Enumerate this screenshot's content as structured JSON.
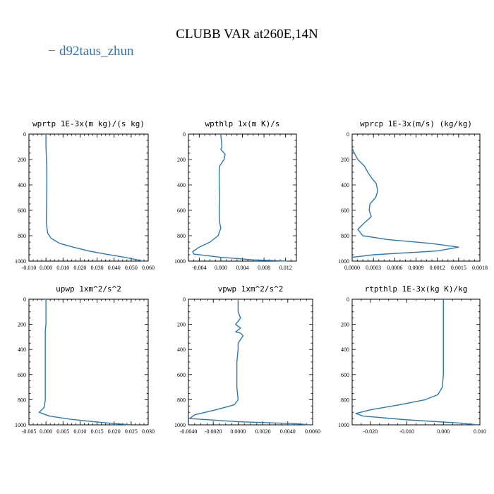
{
  "figure": {
    "title": "CLUBB VAR at260E,14N",
    "legend": {
      "marker": "−",
      "label": "d92taus_zhun",
      "color": "#2a7ab5"
    }
  },
  "chart_data": [
    {
      "type": "line",
      "title": "wprtp  1E-3x(m kg)/(s kg)",
      "series": [
        {
          "name": "d92taus_zhun",
          "color": "#2a7ab5",
          "x": [
            0.0,
            0.0,
            0.0003,
            0.0005,
            0.0005,
            0.0004,
            0.0003,
            0.0002,
            0.001,
            0.003,
            0.008,
            0.016,
            0.025,
            0.035,
            0.044,
            0.052,
            0.057
          ],
          "y": [
            0,
            100,
            200,
            300,
            400,
            500,
            600,
            700,
            780,
            820,
            860,
            890,
            920,
            945,
            965,
            985,
            1000
          ]
        }
      ],
      "xlim": [
        -0.01,
        0.06
      ],
      "ylim": [
        1000,
        0
      ],
      "xticks": [
        -0.01,
        0.0,
        0.01,
        0.02,
        0.03,
        0.04,
        0.05,
        0.06
      ],
      "xtick_labels": [
        "-0.010",
        "0.000",
        "0.010",
        "0.020",
        "0.030",
        "0.040",
        "0.050",
        "0.060"
      ],
      "yticks": [
        0,
        200,
        400,
        600,
        800,
        1000
      ],
      "ytick_labels": [
        "0",
        "200",
        "400",
        "600",
        "800",
        "1000"
      ]
    },
    {
      "type": "line",
      "title": "wpthlp  1x(m K)/s",
      "series": [
        {
          "name": "d92taus_zhun",
          "color": "#2a7ab5",
          "x": [
            0.0,
            0.0002,
            0.0,
            0.0008,
            0.0006,
            -0.0002,
            -0.0003,
            -0.0003,
            -0.0002,
            -0.0003,
            -0.0002,
            0.0,
            -0.0005,
            -0.002,
            -0.004,
            -0.0052,
            -0.005,
            0.0,
            0.006,
            0.0125
          ],
          "y": [
            0,
            100,
            120,
            160,
            200,
            250,
            300,
            400,
            500,
            600,
            700,
            740,
            800,
            850,
            890,
            925,
            945,
            970,
            990,
            1000
          ]
        }
      ],
      "xlim": [
        -0.006,
        0.014
      ],
      "ylim": [
        1000,
        0
      ],
      "xticks": [
        -0.004,
        0.0,
        0.004,
        0.008,
        0.012
      ],
      "xtick_labels": [
        "-0.004",
        "0.000",
        "0.004",
        "0.008",
        "0.012"
      ],
      "yticks": [
        0,
        200,
        400,
        600,
        800,
        1000
      ],
      "ytick_labels": [
        "0",
        "200",
        "400",
        "600",
        "800",
        "1000"
      ]
    },
    {
      "type": "line",
      "title": "wprcp  1E-3x(m/s) (kg/kg)",
      "series": [
        {
          "name": "d92taus_zhun",
          "color": "#2a7ab5",
          "x": [
            0.0,
            3e-05,
            8e-05,
            0.00017,
            0.00022,
            0.00028,
            0.00034,
            0.00036,
            0.00033,
            0.00025,
            0.00024,
            0.00027,
            0.00017,
            8e-05,
            0.00015,
            0.0005,
            0.0011,
            0.0015,
            0.0012,
            0.0003,
            0.0
          ],
          "y": [
            110,
            150,
            200,
            250,
            300,
            350,
            390,
            450,
            500,
            550,
            600,
            650,
            700,
            750,
            800,
            830,
            860,
            890,
            920,
            950,
            970
          ]
        }
      ],
      "xlim": [
        0.0,
        0.0018
      ],
      "ylim": [
        1000,
        0
      ],
      "xticks": [
        0.0,
        0.0003,
        0.0006,
        0.0009,
        0.0012,
        0.0015,
        0.0018
      ],
      "xtick_labels": [
        "0.0000",
        "0.0003",
        "0.0006",
        "0.0009",
        "0.0012",
        "0.0015",
        "0.0018"
      ],
      "yticks": [
        0,
        200,
        400,
        600,
        800,
        1000
      ],
      "ytick_labels": [
        "0",
        "200",
        "400",
        "600",
        "800",
        "1000"
      ]
    },
    {
      "type": "line",
      "title": "upwp  1xm^2/s^2",
      "series": [
        {
          "name": "d92taus_zhun",
          "color": "#2a7ab5",
          "x": [
            0.0,
            0.0,
            0.0,
            -0.0002,
            -0.0002,
            -0.0002,
            -0.0002,
            -0.0002,
            -0.0002,
            -0.0005,
            -0.002,
            0.001,
            0.007,
            0.014,
            0.02,
            0.025
          ],
          "y": [
            0,
            100,
            200,
            250,
            300,
            400,
            500,
            600,
            800,
            860,
            900,
            930,
            955,
            975,
            990,
            1000
          ]
        }
      ],
      "xlim": [
        -0.005,
        0.03
      ],
      "ylim": [
        1000,
        0
      ],
      "xticks": [
        -0.005,
        0.0,
        0.005,
        0.01,
        0.015,
        0.02,
        0.025,
        0.03
      ],
      "xtick_labels": [
        "-0.005",
        "0.000",
        "0.005",
        "0.010",
        "0.015",
        "0.020",
        "0.025",
        "0.030"
      ],
      "yticks": [
        0,
        200,
        400,
        600,
        800,
        1000
      ],
      "ytick_labels": [
        "0",
        "200",
        "400",
        "600",
        "800",
        "1000"
      ]
    },
    {
      "type": "line",
      "title": "vpwp  1xm^2/s^2",
      "series": [
        {
          "name": "d92taus_zhun",
          "color": "#2a7ab5",
          "x": [
            0.0,
            0.0,
            0.0002,
            -0.0002,
            0.0002,
            -0.0002,
            0.0002,
            0.0004,
            0.0,
            0.0,
            -0.0001,
            -0.0001,
            -0.0001,
            0.0,
            -0.0003,
            -0.0018,
            -0.0035,
            -0.0039,
            0.0,
            0.0045,
            0.0058
          ],
          "y": [
            0,
            100,
            150,
            200,
            230,
            260,
            270,
            290,
            350,
            400,
            500,
            600,
            700,
            800,
            840,
            880,
            920,
            950,
            975,
            990,
            1000
          ]
        }
      ],
      "xlim": [
        -0.004,
        0.006
      ],
      "ylim": [
        1000,
        0
      ],
      "xticks": [
        -0.004,
        -0.002,
        0.0,
        0.002,
        0.004,
        0.006
      ],
      "xtick_labels": [
        "-0.0040",
        "-0.0020",
        "0.0000",
        "0.0020",
        "0.0040",
        "0.0060"
      ],
      "yticks": [
        0,
        200,
        400,
        600,
        800,
        1000
      ],
      "ytick_labels": [
        "0",
        "200",
        "400",
        "600",
        "800",
        "1000"
      ]
    },
    {
      "type": "line",
      "title": "rtpthlp  1E-3x(kg K)/kg",
      "series": [
        {
          "name": "d92taus_zhun",
          "color": "#2a7ab5",
          "x": [
            0.0,
            0.0,
            0.0,
            0.0,
            -0.0003,
            -0.0015,
            -0.005,
            -0.012,
            -0.02,
            -0.024,
            -0.022,
            -0.01,
            0.004,
            0.0095
          ],
          "y": [
            0,
            200,
            400,
            600,
            700,
            760,
            800,
            840,
            880,
            910,
            930,
            960,
            985,
            1000
          ]
        }
      ],
      "xlim": [
        -0.025,
        0.01
      ],
      "ylim": [
        1000,
        0
      ],
      "xticks": [
        -0.02,
        -0.01,
        0.0,
        0.01
      ],
      "xtick_labels": [
        "-0.020",
        "-0.010",
        "0.000",
        "0.010"
      ],
      "yticks": [
        0,
        200,
        400,
        600,
        800,
        1000
      ],
      "ytick_labels": [
        "0",
        "200",
        "400",
        "600",
        "800",
        "1000"
      ]
    }
  ]
}
